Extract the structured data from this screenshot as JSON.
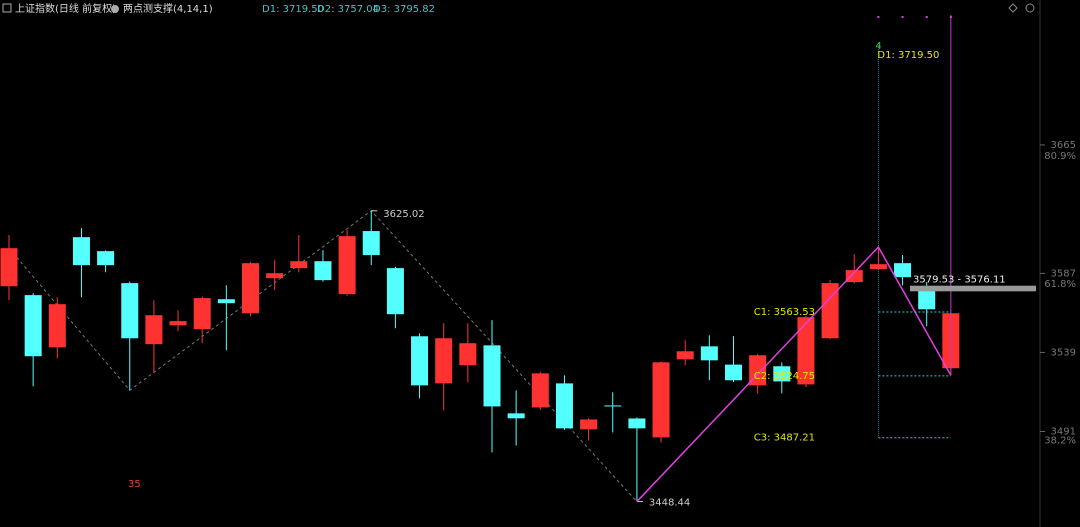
{
  "chart_data": {
    "type": "candlestick",
    "header": {
      "title": "上证指数(日线 前复权)",
      "indicator": "两点测支撑(4,14,1)",
      "d_values": [
        "D1: 3719.50",
        "D2: 3757.04",
        "D3: 3795.82"
      ]
    },
    "up_color": "#ff3232",
    "down_color": "#54ffff",
    "open": [
      3579.2,
      3573.8,
      3542.1,
      3609,
      3600.5,
      3581.1,
      3544,
      3555.5,
      3553.1,
      3571.3,
      3562.8,
      3584.1,
      3590.2,
      3594.4,
      3574.4,
      3612.7,
      3590.2,
      3548.8,
      3520.2,
      3531.2,
      3543.3,
      3502,
      3505.6,
      3520.2,
      3492.3,
      3506.8,
      3498.9,
      3487.4,
      3534.8,
      3542.7,
      3531.6,
      3519,
      3530.6,
      3519.6,
      3547.6,
      3581.7,
      3589.6,
      3593.2,
      3576.8,
      3529.4
    ],
    "high": [
      3610.3,
      3575,
      3572.5,
      3614.5,
      3601,
      3582,
      3570.7,
      3564.6,
      3573,
      3579.8,
      3594,
      3595,
      3610.3,
      3601.1,
      3613.3,
      3625.02,
      3591,
      3550.6,
      3556.7,
      3556.7,
      3558.6,
      3516,
      3527,
      3525.1,
      3499,
      3514.8,
      3499.5,
      3533.5,
      3546.4,
      3549.4,
      3548.8,
      3538,
      3533,
      3561,
      3582.9,
      3598.7,
      3603,
      3598.1,
      3581.7,
      3563
    ],
    "low": [
      3570.7,
      3518.4,
      3535.4,
      3572.5,
      3587.7,
      3516,
      3527,
      3551.9,
      3544.6,
      3540.3,
      3561,
      3576.8,
      3587.7,
      3582,
      3573.5,
      3592,
      3553.7,
      3511.1,
      3503.8,
      3520.8,
      3478.3,
      3482.5,
      3504,
      3492,
      3485.6,
      3490.4,
      3448.44,
      3484.3,
      3531.2,
      3522.1,
      3521,
      3514.1,
      3514.1,
      3518,
      3547,
      3581,
      3589,
      3579.8,
      3554.9,
      3525.1
    ],
    "close": [
      3602.3,
      3536.7,
      3568.3,
      3592,
      3592,
      3547.6,
      3561.6,
      3558,
      3572,
      3568.9,
      3593.2,
      3587.1,
      3594.4,
      3582.9,
      3609.6,
      3598.1,
      3562.2,
      3519,
      3547.6,
      3544.6,
      3506.2,
      3499,
      3526.3,
      3492.9,
      3498.3,
      3506.5,
      3492.9,
      3533,
      3539.7,
      3534.2,
      3522.1,
      3537.3,
      3521.4,
      3560.4,
      3581.1,
      3589,
      3592.6,
      3584.7,
      3565.2,
      3562.8
    ],
    "ylim": [
      3433,
      3753
    ],
    "yticks": [
      3665,
      3587,
      3539,
      3491
    ],
    "level_labels": [
      {
        "value": 3658.3,
        "label": "80.9%"
      },
      {
        "value": 3580.5,
        "label": "61.8%"
      },
      {
        "value": 3485.6,
        "label": "38.2%"
      }
    ],
    "levels": [
      {
        "label": "C1: 3563.53",
        "value": 3563.53
      },
      {
        "label": "C2: 3524.75",
        "value": 3524.75
      },
      {
        "label": "C3: 3487.21",
        "value": 3487.21
      }
    ],
    "target": {
      "label": "D1: 3719.50",
      "value": 3719.5,
      "count": "4"
    },
    "band": {
      "label": "3579.53 - 3576.11",
      "values": [
        3579.53,
        3576.11
      ]
    },
    "note": "35"
  }
}
